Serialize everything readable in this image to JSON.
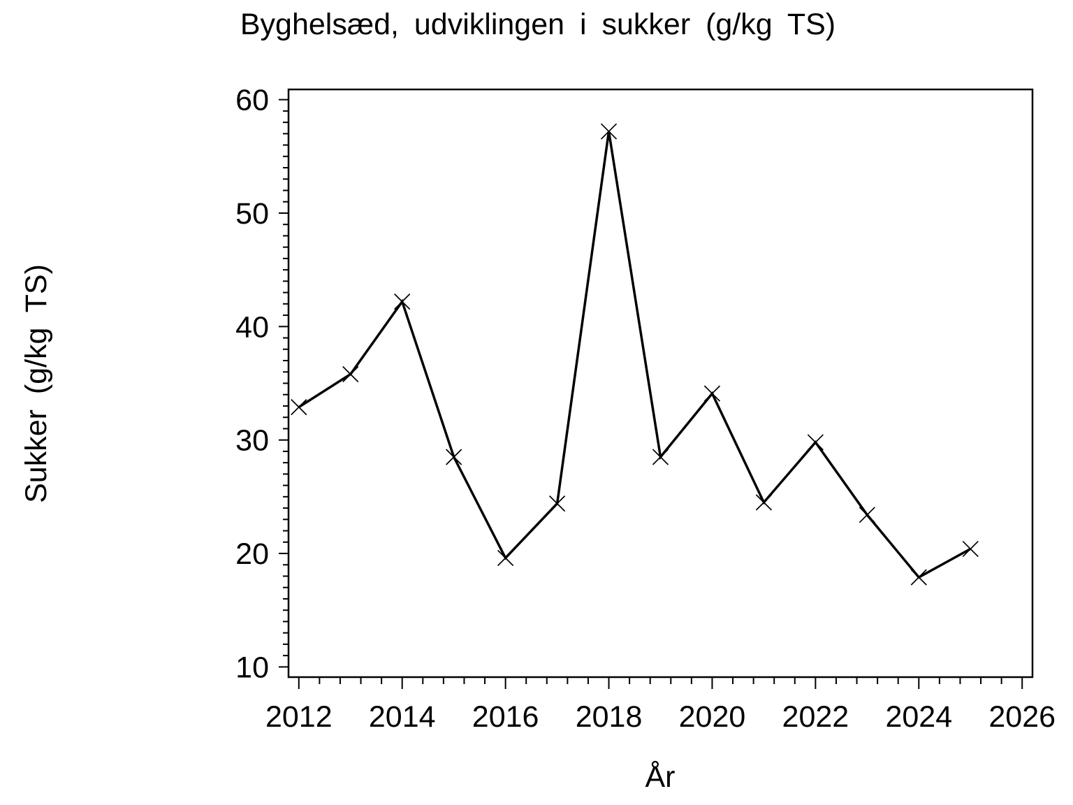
{
  "figure": {
    "background_color": "#ffffff",
    "foreground_color": "#000000"
  },
  "chart_data": {
    "type": "line",
    "title": "Byghelsæd, udviklingen i sukker (g/kg TS)",
    "xlabel": "År",
    "ylabel": "Sukker (g/kg TS)",
    "series": [
      {
        "name": "Sukker",
        "x": [
          2012,
          2013,
          2014,
          2015,
          2016,
          2017,
          2018,
          2019,
          2020,
          2021,
          2022,
          2023,
          2024,
          2025
        ],
        "values": [
          32.9,
          35.8,
          42.2,
          28.5,
          19.6,
          24.4,
          57.2,
          28.5,
          34.1,
          24.5,
          29.8,
          23.4,
          17.9,
          20.4
        ],
        "marker": "x",
        "color": "#000000"
      }
    ],
    "xlim": [
      2011.8,
      2026.2
    ],
    "ylim": [
      9.1,
      60.9
    ],
    "xticks": [
      2012,
      2014,
      2016,
      2018,
      2020,
      2022,
      2024,
      2026
    ],
    "xtick_labels": [
      "2012",
      "2014",
      "2016",
      "2018",
      "2020",
      "2022",
      "2024",
      "2026"
    ],
    "x_minor_step": 0.4,
    "yticks": [
      10,
      20,
      30,
      40,
      50,
      60
    ],
    "ytick_labels": [
      "10",
      "20",
      "30",
      "40",
      "50",
      "60"
    ],
    "y_minor_step": 1,
    "grid": false,
    "legend_position": "none"
  }
}
